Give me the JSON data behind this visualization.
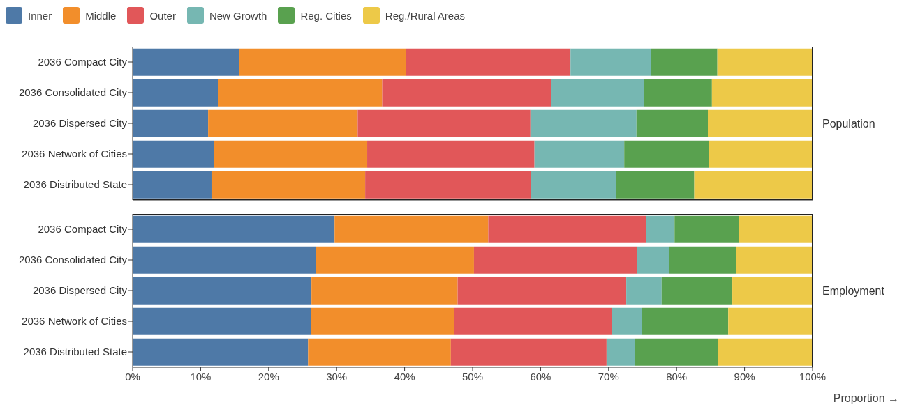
{
  "chart_data": [
    {
      "type": "bar",
      "orientation": "horizontal",
      "stacked": true,
      "y2label": "Population",
      "legend": "top left",
      "tick_labels": "y",
      "categories": [
        "2036 Compact City",
        "2036 Consolidated City",
        "2036 Dispersed City",
        "2036 Network of Cities",
        "2036 Distributed State"
      ],
      "xlim": [
        0,
        100
      ],
      "series": [
        {
          "name": "Inner",
          "color": "#4e79a7",
          "values": [
            15.7,
            12.6,
            11.1,
            12.0,
            11.6
          ]
        },
        {
          "name": "Middle",
          "color": "#f28e2b",
          "values": [
            24.5,
            24.1,
            22.0,
            22.5,
            22.6
          ]
        },
        {
          "name": "Outer",
          "color": "#e15759",
          "values": [
            24.2,
            24.8,
            25.4,
            24.6,
            24.4
          ]
        },
        {
          "name": "New Growth",
          "color": "#76b7b2",
          "values": [
            11.8,
            13.7,
            15.6,
            13.2,
            12.5
          ]
        },
        {
          "name": "Reg. Cities",
          "color": "#59a14f",
          "values": [
            9.8,
            10.0,
            10.5,
            12.5,
            11.5
          ]
        },
        {
          "name": "Reg./Rural Areas",
          "color": "#edc948",
          "values": [
            14.0,
            14.8,
            15.4,
            15.2,
            17.4
          ]
        }
      ]
    },
    {
      "type": "bar",
      "orientation": "horizontal",
      "stacked": true,
      "y2label": "Employment",
      "xlabel": "Proportion →",
      "categories": [
        "2036 Compact City",
        "2036 Consolidated City",
        "2036 Dispersed City",
        "2036 Network of Cities",
        "2036 Distributed State"
      ],
      "xlim": [
        0,
        100
      ],
      "xticks": [
        {
          "value": 0,
          "label": "0%"
        },
        {
          "value": 10,
          "label": "10%"
        },
        {
          "value": 20,
          "label": "20%"
        },
        {
          "value": 30,
          "label": "30%"
        },
        {
          "value": 40,
          "label": "40%"
        },
        {
          "value": 50,
          "label": "50%"
        },
        {
          "value": 60,
          "label": "60%"
        },
        {
          "value": 70,
          "label": "70%"
        },
        {
          "value": 80,
          "label": "80%"
        },
        {
          "value": 90,
          "label": "90%"
        },
        {
          "value": 100,
          "label": "100%"
        }
      ],
      "series": [
        {
          "color": "#4e79a7",
          "values": [
            29.7,
            27.0,
            26.3,
            26.2,
            25.8
          ]
        },
        {
          "color": "#f28e2b",
          "values": [
            22.6,
            23.2,
            21.5,
            21.1,
            21.0
          ]
        },
        {
          "color": "#e15759",
          "values": [
            23.2,
            24.0,
            24.8,
            23.2,
            22.9
          ]
        },
        {
          "color": "#76b7b2",
          "values": [
            4.2,
            4.7,
            5.2,
            4.4,
            4.2
          ]
        },
        {
          "color": "#59a14f",
          "values": [
            9.5,
            9.9,
            10.4,
            12.7,
            12.2
          ]
        },
        {
          "color": "#edc948",
          "values": [
            10.8,
            11.2,
            11.8,
            12.4,
            13.9
          ]
        }
      ]
    }
  ]
}
